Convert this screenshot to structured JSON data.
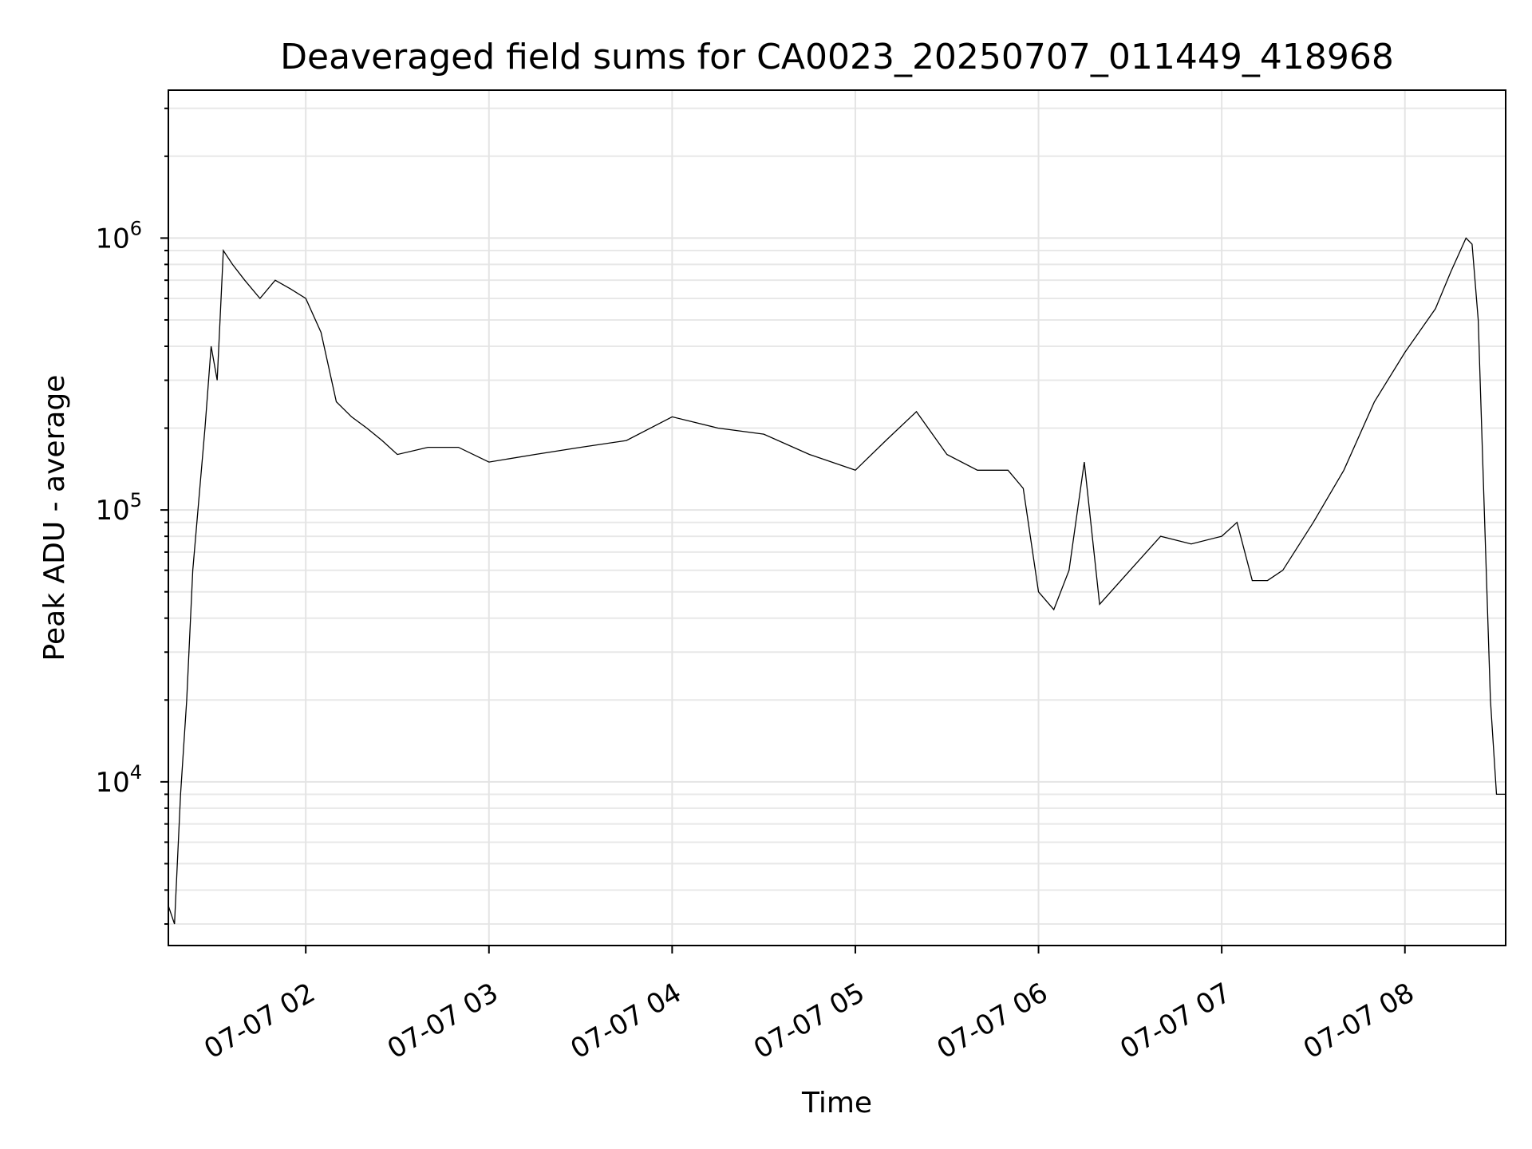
{
  "chart_data": {
    "type": "line",
    "title": "Deaveraged field sums for CA0023_20250707_011449_418968",
    "xlabel": "Time",
    "ylabel": "Peak ADU - average",
    "x_range": [
      "2025-07-07 01:15",
      "2025-07-07 08:33"
    ],
    "x_ticks": [
      {
        "t": "2025-07-07 02:00",
        "label": "07-07 02"
      },
      {
        "t": "2025-07-07 03:00",
        "label": "07-07 03"
      },
      {
        "t": "2025-07-07 04:00",
        "label": "07-07 04"
      },
      {
        "t": "2025-07-07 05:00",
        "label": "07-07 05"
      },
      {
        "t": "2025-07-07 06:00",
        "label": "07-07 06"
      },
      {
        "t": "2025-07-07 07:00",
        "label": "07-07 07"
      },
      {
        "t": "2025-07-07 08:00",
        "label": "07-07 08"
      }
    ],
    "y_scale": "log",
    "ylim": [
      2500,
      3500000
    ],
    "y_ticks": [
      {
        "value": 10000,
        "base": "10",
        "exp": "4"
      },
      {
        "value": 100000,
        "base": "10",
        "exp": "5"
      },
      {
        "value": 1000000,
        "base": "10",
        "exp": "6"
      }
    ],
    "grid": true,
    "series": [
      {
        "color": "#000000",
        "points": [
          [
            "2025-07-07 01:15",
            3500
          ],
          [
            "2025-07-07 01:17",
            3000
          ],
          [
            "2025-07-07 01:19",
            9000
          ],
          [
            "2025-07-07 01:21",
            20000
          ],
          [
            "2025-07-07 01:23",
            60000
          ],
          [
            "2025-07-07 01:25",
            110000
          ],
          [
            "2025-07-07 01:27",
            200000
          ],
          [
            "2025-07-07 01:29",
            400000
          ],
          [
            "2025-07-07 01:31",
            300000
          ],
          [
            "2025-07-07 01:33",
            900000
          ],
          [
            "2025-07-07 01:36",
            800000
          ],
          [
            "2025-07-07 01:40",
            700000
          ],
          [
            "2025-07-07 01:45",
            600000
          ],
          [
            "2025-07-07 01:50",
            700000
          ],
          [
            "2025-07-07 01:55",
            650000
          ],
          [
            "2025-07-07 02:00",
            600000
          ],
          [
            "2025-07-07 02:05",
            450000
          ],
          [
            "2025-07-07 02:10",
            250000
          ],
          [
            "2025-07-07 02:15",
            220000
          ],
          [
            "2025-07-07 02:20",
            200000
          ],
          [
            "2025-07-07 02:25",
            180000
          ],
          [
            "2025-07-07 02:30",
            160000
          ],
          [
            "2025-07-07 02:40",
            170000
          ],
          [
            "2025-07-07 02:50",
            170000
          ],
          [
            "2025-07-07 03:00",
            150000
          ],
          [
            "2025-07-07 03:15",
            160000
          ],
          [
            "2025-07-07 03:30",
            170000
          ],
          [
            "2025-07-07 03:45",
            180000
          ],
          [
            "2025-07-07 04:00",
            220000
          ],
          [
            "2025-07-07 04:15",
            200000
          ],
          [
            "2025-07-07 04:30",
            190000
          ],
          [
            "2025-07-07 04:45",
            160000
          ],
          [
            "2025-07-07 05:00",
            140000
          ],
          [
            "2025-07-07 05:10",
            180000
          ],
          [
            "2025-07-07 05:20",
            230000
          ],
          [
            "2025-07-07 05:30",
            160000
          ],
          [
            "2025-07-07 05:40",
            140000
          ],
          [
            "2025-07-07 05:50",
            140000
          ],
          [
            "2025-07-07 05:55",
            120000
          ],
          [
            "2025-07-07 06:00",
            50000
          ],
          [
            "2025-07-07 06:05",
            43000
          ],
          [
            "2025-07-07 06:10",
            60000
          ],
          [
            "2025-07-07 06:15",
            150000
          ],
          [
            "2025-07-07 06:20",
            45000
          ],
          [
            "2025-07-07 06:30",
            60000
          ],
          [
            "2025-07-07 06:40",
            80000
          ],
          [
            "2025-07-07 06:50",
            75000
          ],
          [
            "2025-07-07 07:00",
            80000
          ],
          [
            "2025-07-07 07:05",
            90000
          ],
          [
            "2025-07-07 07:10",
            55000
          ],
          [
            "2025-07-07 07:15",
            55000
          ],
          [
            "2025-07-07 07:20",
            60000
          ],
          [
            "2025-07-07 07:30",
            90000
          ],
          [
            "2025-07-07 07:40",
            140000
          ],
          [
            "2025-07-07 07:50",
            250000
          ],
          [
            "2025-07-07 08:00",
            380000
          ],
          [
            "2025-07-07 08:10",
            550000
          ],
          [
            "2025-07-07 08:15",
            750000
          ],
          [
            "2025-07-07 08:20",
            1000000
          ],
          [
            "2025-07-07 08:22",
            950000
          ],
          [
            "2025-07-07 08:24",
            500000
          ],
          [
            "2025-07-07 08:26",
            100000
          ],
          [
            "2025-07-07 08:28",
            20000
          ],
          [
            "2025-07-07 08:30",
            9000
          ],
          [
            "2025-07-07 08:33",
            9000
          ]
        ]
      }
    ]
  }
}
